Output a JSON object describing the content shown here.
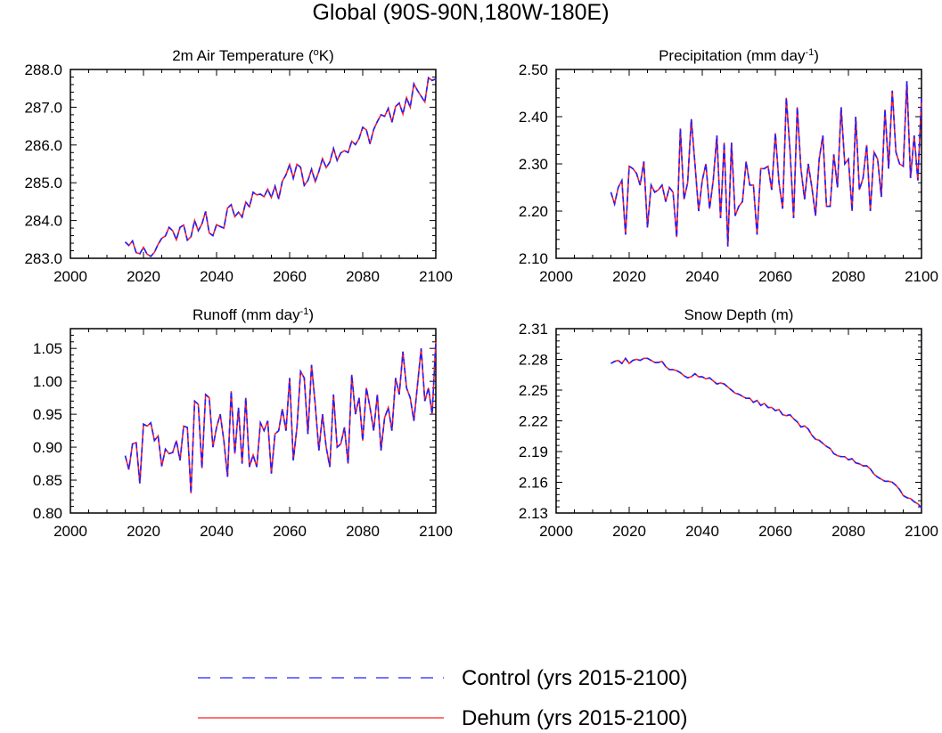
{
  "figure_title": "Global (90S-90N,180W-180E)",
  "colors": {
    "control": "#2020ff",
    "dehum": "#ff2020",
    "axis": "#000000"
  },
  "legend": [
    {
      "key": "control",
      "label": "Control (yrs 2015-2100)",
      "style": "dashed"
    },
    {
      "key": "dehum",
      "label": "Dehum (yrs 2015-2100)",
      "style": "solid"
    }
  ],
  "chart_data": [
    {
      "type": "line",
      "title_text": "2m Air Temperature (",
      "title_sup": "o",
      "title_tail": "K)",
      "xlim": [
        2000,
        2100
      ],
      "x_ticks": [
        "2000",
        "2020",
        "2040",
        "2060",
        "2080",
        "2100"
      ],
      "ylim": [
        283.0,
        288.0
      ],
      "y_ticks": [
        "283.0",
        "284.0",
        "285.0",
        "286.0",
        "287.0",
        "288.0"
      ],
      "x_start": 2015,
      "series": [
        {
          "name": "Control",
          "values": [
            283.43,
            283.34,
            283.46,
            283.15,
            283.12,
            283.29,
            283.11,
            283.05,
            283.16,
            283.37,
            283.53,
            283.59,
            283.82,
            283.73,
            283.49,
            283.82,
            283.88,
            283.48,
            283.57,
            284.0,
            283.73,
            283.91,
            284.24,
            283.67,
            283.6,
            283.89,
            283.84,
            283.8,
            284.33,
            284.42,
            284.1,
            284.22,
            284.09,
            284.49,
            284.36,
            284.75,
            284.68,
            284.7,
            284.63,
            284.83,
            284.61,
            284.91,
            284.57,
            285.04,
            285.21,
            285.48,
            285.12,
            285.49,
            285.41,
            284.93,
            285.06,
            285.36,
            285.03,
            285.3,
            285.64,
            285.4,
            285.55,
            285.91,
            285.59,
            285.79,
            285.85,
            285.8,
            286.1,
            286.01,
            286.17,
            286.47,
            286.4,
            286.03,
            286.41,
            286.62,
            286.8,
            286.76,
            286.97,
            286.6,
            287.02,
            287.11,
            286.82,
            287.25,
            287.0,
            287.62,
            287.44,
            287.29,
            287.14,
            287.78,
            287.71,
            287.75
          ]
        },
        {
          "name": "Dehum",
          "values": [
            283.43,
            283.34,
            283.46,
            283.15,
            283.12,
            283.29,
            283.11,
            283.05,
            283.16,
            283.37,
            283.53,
            283.59,
            283.82,
            283.73,
            283.49,
            283.82,
            283.88,
            283.48,
            283.57,
            284.0,
            283.73,
            283.91,
            284.24,
            283.67,
            283.6,
            283.89,
            283.84,
            283.8,
            284.33,
            284.42,
            284.1,
            284.22,
            284.09,
            284.49,
            284.36,
            284.75,
            284.68,
            284.7,
            284.63,
            284.83,
            284.61,
            284.91,
            284.57,
            285.04,
            285.21,
            285.48,
            285.12,
            285.49,
            285.41,
            284.93,
            285.06,
            285.36,
            285.03,
            285.3,
            285.64,
            285.4,
            285.55,
            285.91,
            285.59,
            285.79,
            285.85,
            285.8,
            286.1,
            286.01,
            286.17,
            286.47,
            286.4,
            286.03,
            286.41,
            286.62,
            286.8,
            286.76,
            286.97,
            286.6,
            287.02,
            287.11,
            286.82,
            287.25,
            287.0,
            287.62,
            287.44,
            287.29,
            287.14,
            287.78,
            287.71,
            287.75
          ]
        }
      ]
    },
    {
      "type": "line",
      "title_text": "Precipitation (mm day",
      "title_sup": "-1",
      "title_tail": ")",
      "xlim": [
        2000,
        2100
      ],
      "x_ticks": [
        "2000",
        "2020",
        "2040",
        "2060",
        "2080",
        "2100"
      ],
      "ylim": [
        2.1,
        2.5
      ],
      "y_ticks": [
        "2.10",
        "2.20",
        "2.30",
        "2.40",
        "2.50"
      ],
      "x_start": 2015,
      "series": [
        {
          "name": "Control",
          "values": [
            2.24,
            2.215,
            2.25,
            2.265,
            2.15,
            2.295,
            2.29,
            2.28,
            2.255,
            2.305,
            2.165,
            2.255,
            2.24,
            2.245,
            2.255,
            2.22,
            2.25,
            2.24,
            2.145,
            2.375,
            2.225,
            2.26,
            2.395,
            2.3,
            2.2,
            2.265,
            2.3,
            2.205,
            2.265,
            2.36,
            2.185,
            2.345,
            2.125,
            2.345,
            2.19,
            2.21,
            2.22,
            2.305,
            2.255,
            2.255,
            2.15,
            2.29,
            2.29,
            2.295,
            2.245,
            2.365,
            2.26,
            2.205,
            2.44,
            2.33,
            2.185,
            2.42,
            2.29,
            2.225,
            2.3,
            2.25,
            2.19,
            2.31,
            2.36,
            2.21,
            2.21,
            2.32,
            2.25,
            2.42,
            2.3,
            2.31,
            2.2,
            2.4,
            2.245,
            2.27,
            2.34,
            2.2,
            2.325,
            2.31,
            2.23,
            2.415,
            2.29,
            2.455,
            2.325,
            2.3,
            2.295,
            2.475,
            2.27,
            2.36,
            2.265,
            2.44
          ]
        },
        {
          "name": "Dehum",
          "values": [
            2.24,
            2.215,
            2.25,
            2.265,
            2.15,
            2.295,
            2.29,
            2.28,
            2.255,
            2.305,
            2.165,
            2.255,
            2.24,
            2.245,
            2.255,
            2.22,
            2.25,
            2.24,
            2.145,
            2.375,
            2.225,
            2.26,
            2.395,
            2.3,
            2.2,
            2.265,
            2.3,
            2.205,
            2.265,
            2.36,
            2.185,
            2.345,
            2.125,
            2.345,
            2.19,
            2.21,
            2.22,
            2.305,
            2.255,
            2.255,
            2.15,
            2.29,
            2.29,
            2.295,
            2.245,
            2.365,
            2.26,
            2.205,
            2.44,
            2.33,
            2.185,
            2.42,
            2.29,
            2.225,
            2.3,
            2.25,
            2.19,
            2.31,
            2.36,
            2.21,
            2.21,
            2.32,
            2.25,
            2.42,
            2.3,
            2.31,
            2.2,
            2.4,
            2.245,
            2.27,
            2.34,
            2.2,
            2.325,
            2.31,
            2.23,
            2.415,
            2.29,
            2.455,
            2.325,
            2.3,
            2.295,
            2.475,
            2.27,
            2.36,
            2.265,
            2.44
          ]
        }
      ]
    },
    {
      "type": "line",
      "title_text": "Runoff (mm day",
      "title_sup": "-1",
      "title_tail": ")",
      "xlim": [
        2000,
        2100
      ],
      "x_ticks": [
        "2000",
        "2020",
        "2040",
        "2060",
        "2080",
        "2100"
      ],
      "ylim": [
        0.8,
        1.08
      ],
      "y_ticks": [
        "0.80",
        "0.85",
        "0.90",
        "0.95",
        "1.00",
        "1.05"
      ],
      "y_tick_values": [
        0.8,
        0.85,
        0.9,
        0.95,
        1.0,
        1.05
      ],
      "x_start": 2015,
      "series": [
        {
          "name": "Control",
          "values": [
            0.887,
            0.866,
            0.905,
            0.907,
            0.845,
            0.935,
            0.932,
            0.937,
            0.91,
            0.917,
            0.871,
            0.897,
            0.89,
            0.892,
            0.91,
            0.88,
            0.932,
            0.93,
            0.83,
            0.97,
            0.965,
            0.868,
            0.98,
            0.975,
            0.9,
            0.93,
            0.95,
            0.91,
            0.855,
            0.985,
            0.89,
            0.96,
            0.875,
            0.975,
            0.87,
            0.888,
            0.87,
            0.937,
            0.925,
            0.94,
            0.86,
            0.92,
            0.925,
            0.958,
            0.925,
            1.005,
            0.88,
            0.93,
            1.015,
            1.005,
            0.92,
            1.025,
            0.965,
            0.895,
            0.95,
            0.9,
            0.87,
            0.98,
            0.9,
            0.905,
            0.93,
            0.875,
            1.01,
            0.95,
            0.975,
            0.91,
            0.99,
            0.96,
            0.925,
            0.98,
            0.895,
            0.945,
            0.96,
            0.925,
            1.005,
            0.98,
            1.045,
            0.99,
            0.975,
            0.94,
            0.995,
            1.05,
            0.97,
            0.99,
            0.95,
            1.06
          ]
        },
        {
          "name": "Dehum",
          "values": [
            0.887,
            0.866,
            0.905,
            0.907,
            0.845,
            0.935,
            0.932,
            0.937,
            0.91,
            0.917,
            0.871,
            0.897,
            0.89,
            0.892,
            0.91,
            0.88,
            0.932,
            0.93,
            0.83,
            0.97,
            0.965,
            0.868,
            0.98,
            0.975,
            0.9,
            0.93,
            0.95,
            0.91,
            0.855,
            0.985,
            0.89,
            0.96,
            0.875,
            0.975,
            0.87,
            0.888,
            0.87,
            0.937,
            0.925,
            0.94,
            0.86,
            0.92,
            0.925,
            0.958,
            0.925,
            1.005,
            0.88,
            0.93,
            1.015,
            1.005,
            0.92,
            1.025,
            0.965,
            0.895,
            0.95,
            0.9,
            0.87,
            0.98,
            0.9,
            0.905,
            0.93,
            0.875,
            1.01,
            0.95,
            0.975,
            0.91,
            0.99,
            0.96,
            0.925,
            0.98,
            0.895,
            0.945,
            0.96,
            0.925,
            1.005,
            0.98,
            1.045,
            0.99,
            0.975,
            0.94,
            0.995,
            1.05,
            0.97,
            0.99,
            0.95,
            1.06
          ]
        }
      ]
    },
    {
      "type": "line",
      "title_text": "Snow Depth (m)",
      "title_sup": "",
      "title_tail": "",
      "xlim": [
        2000,
        2100
      ],
      "x_ticks": [
        "2000",
        "2020",
        "2040",
        "2060",
        "2080",
        "2100"
      ],
      "ylim": [
        2.13,
        2.31
      ],
      "y_ticks": [
        "2.13",
        "2.16",
        "2.19",
        "2.22",
        "2.25",
        "2.28",
        "2.31"
      ],
      "y_tick_values": [
        2.13,
        2.16,
        2.19,
        2.22,
        2.25,
        2.28,
        2.31
      ],
      "x_start": 2015,
      "series": [
        {
          "name": "Control",
          "values": [
            2.276,
            2.278,
            2.279,
            2.276,
            2.281,
            2.276,
            2.279,
            2.28,
            2.279,
            2.281,
            2.281,
            2.279,
            2.277,
            2.277,
            2.278,
            2.273,
            2.27,
            2.27,
            2.269,
            2.267,
            2.264,
            2.262,
            2.263,
            2.266,
            2.263,
            2.263,
            2.261,
            2.262,
            2.259,
            2.256,
            2.257,
            2.256,
            2.253,
            2.25,
            2.247,
            2.246,
            2.244,
            2.242,
            2.242,
            2.238,
            2.24,
            2.235,
            2.237,
            2.233,
            2.233,
            2.23,
            2.231,
            2.226,
            2.225,
            2.226,
            2.222,
            2.219,
            2.214,
            2.215,
            2.212,
            2.206,
            2.202,
            2.201,
            2.198,
            2.195,
            2.193,
            2.188,
            2.186,
            2.185,
            2.185,
            2.182,
            2.183,
            2.179,
            2.178,
            2.176,
            2.176,
            2.173,
            2.168,
            2.165,
            2.163,
            2.161,
            2.161,
            2.16,
            2.157,
            2.153,
            2.147,
            2.145,
            2.144,
            2.141,
            2.139,
            2.135
          ]
        },
        {
          "name": "Dehum",
          "values": [
            2.276,
            2.278,
            2.279,
            2.276,
            2.281,
            2.276,
            2.279,
            2.28,
            2.279,
            2.281,
            2.281,
            2.279,
            2.277,
            2.277,
            2.278,
            2.273,
            2.27,
            2.27,
            2.269,
            2.267,
            2.264,
            2.262,
            2.263,
            2.266,
            2.263,
            2.263,
            2.261,
            2.262,
            2.259,
            2.256,
            2.257,
            2.256,
            2.253,
            2.25,
            2.247,
            2.246,
            2.244,
            2.242,
            2.242,
            2.238,
            2.24,
            2.235,
            2.237,
            2.233,
            2.233,
            2.23,
            2.231,
            2.226,
            2.225,
            2.226,
            2.222,
            2.219,
            2.214,
            2.215,
            2.212,
            2.206,
            2.202,
            2.201,
            2.198,
            2.195,
            2.193,
            2.188,
            2.186,
            2.185,
            2.185,
            2.182,
            2.183,
            2.179,
            2.178,
            2.176,
            2.176,
            2.173,
            2.168,
            2.165,
            2.163,
            2.161,
            2.161,
            2.16,
            2.157,
            2.153,
            2.147,
            2.145,
            2.144,
            2.141,
            2.139,
            2.135
          ]
        }
      ]
    }
  ]
}
